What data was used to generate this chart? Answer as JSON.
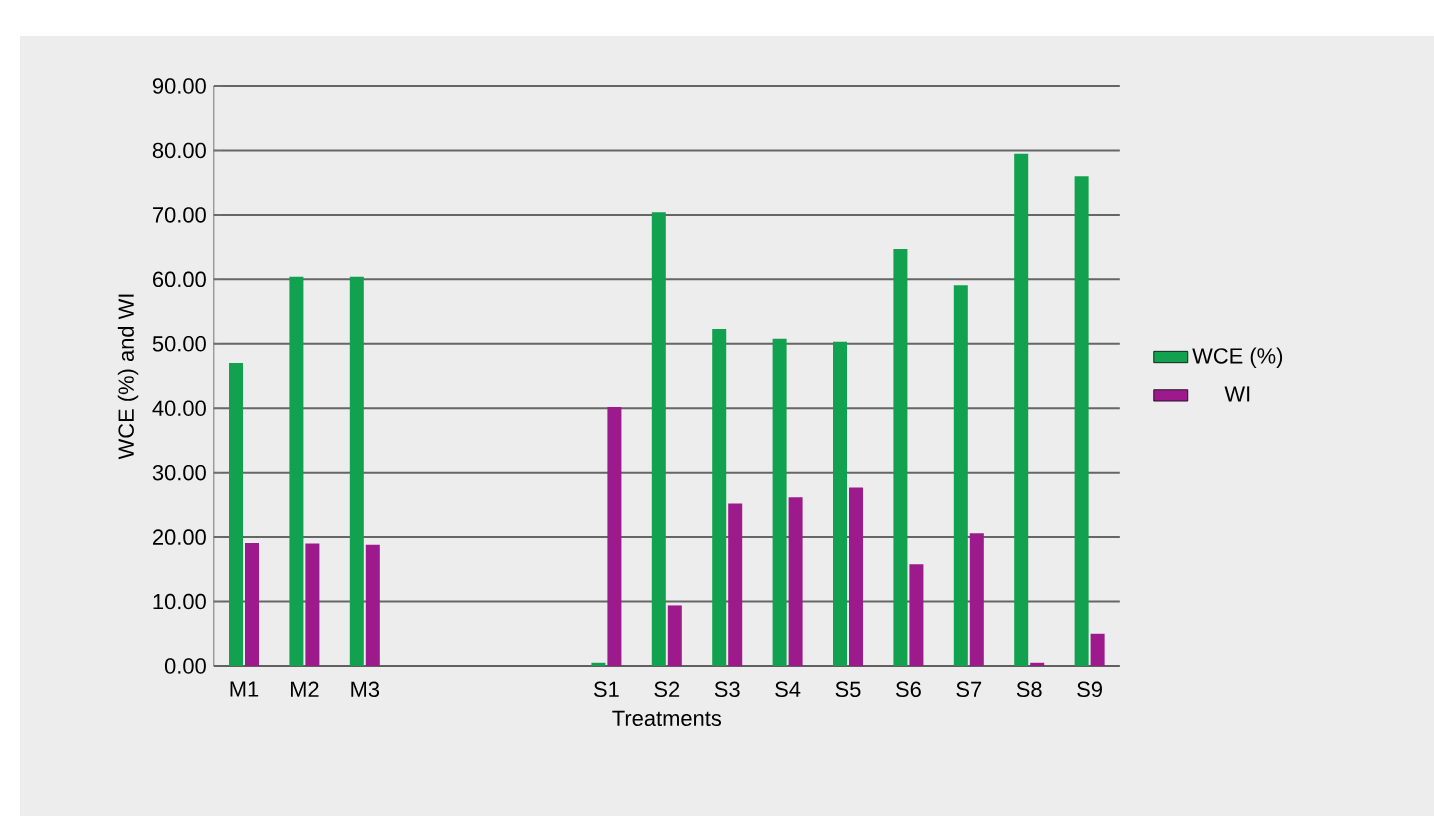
{
  "chart_data": {
    "type": "bar",
    "xlabel": "Treatments",
    "ylabel": "WCE (%) and WI",
    "categories": [
      "M1",
      "M2",
      "M3",
      null,
      null,
      null,
      "S1",
      "S2",
      "S3",
      "S4",
      "S5",
      "S6",
      "S7",
      "S8",
      "S9"
    ],
    "series": [
      {
        "name": "WCE (%)",
        "color": "#12a14e",
        "values": [
          47,
          60.4,
          60.4,
          null,
          null,
          null,
          0.5,
          70.4,
          52.3,
          50.8,
          50.3,
          64.7,
          59.1,
          79.5,
          76
        ]
      },
      {
        "name": "WI",
        "color": "#9c1a8c",
        "values": [
          19.1,
          19,
          18.8,
          null,
          null,
          null,
          40.2,
          9.4,
          25.2,
          26.2,
          27.7,
          15.8,
          20.6,
          0.5,
          5
        ]
      }
    ],
    "ylim": [
      0,
      90
    ],
    "yticks": [
      {
        "value": 0,
        "label": "0.00"
      },
      {
        "value": 10,
        "label": "10.00"
      },
      {
        "value": 20,
        "label": "20.00"
      },
      {
        "value": 30,
        "label": "30.00"
      },
      {
        "value": 40,
        "label": "40.00"
      },
      {
        "value": 50,
        "label": "50.00"
      },
      {
        "value": 60,
        "label": "60.00"
      },
      {
        "value": 70,
        "label": "70.00"
      },
      {
        "value": 80,
        "label": "80.00"
      },
      {
        "value": 90,
        "label": "90.00"
      }
    ],
    "grid": "y",
    "legend": "right"
  }
}
